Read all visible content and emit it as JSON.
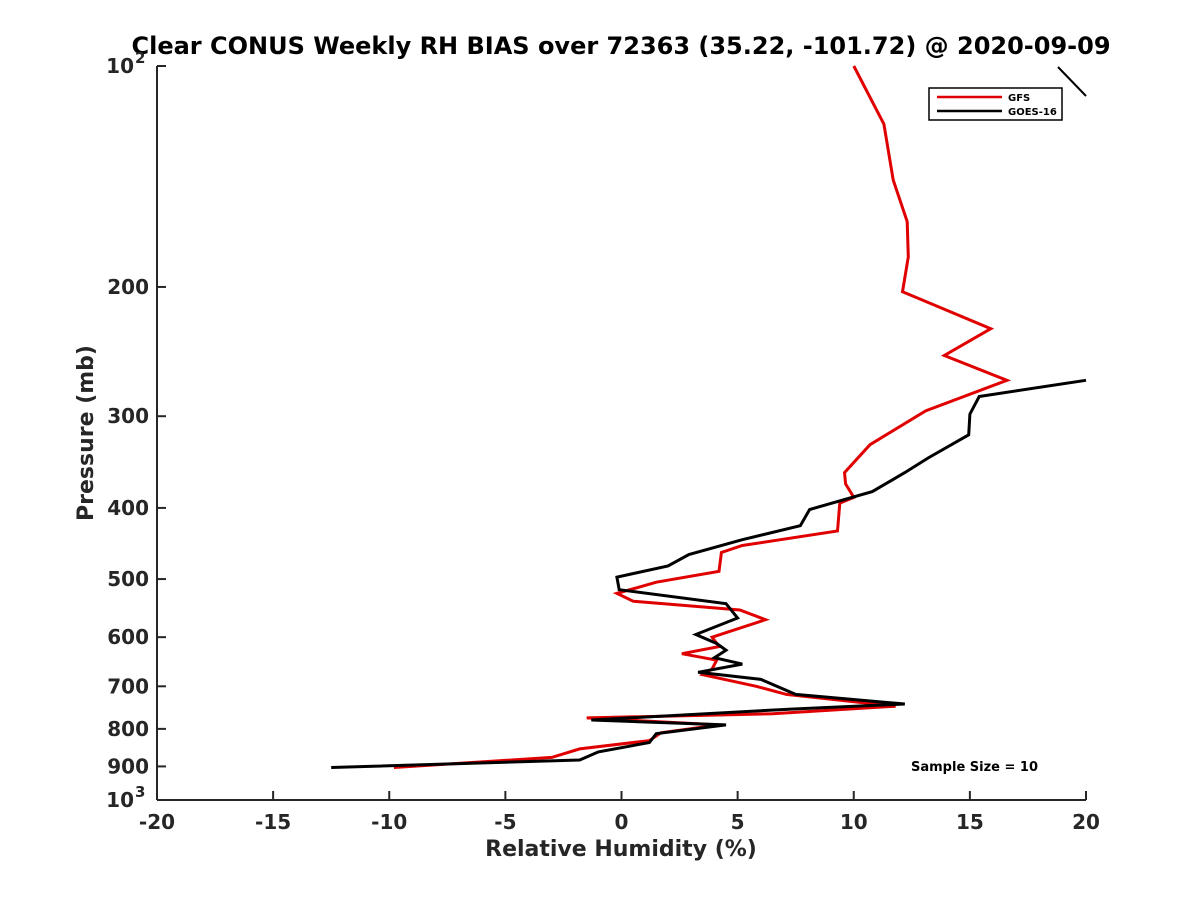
{
  "chart_data": {
    "type": "line",
    "title": "Clear CONUS Weekly RH BIAS over 72363 (35.22, -101.72) @ 2020-09-09",
    "xlabel": "Relative Humidity (%)",
    "ylabel": "Pressure (mb)",
    "xlim": [
      -20,
      20
    ],
    "ylim": [
      100,
      1000
    ],
    "y_scale": "log",
    "y_reversed": true,
    "grid": false,
    "legend_position": "top-right",
    "x_ticks": [
      "-20",
      "-15",
      "-10",
      "-5",
      "0",
      "5",
      "10",
      "15",
      "20"
    ],
    "y_ticks": [
      {
        "value": 100,
        "base": "10",
        "exp": "2"
      },
      {
        "value": 200,
        "label": "200"
      },
      {
        "value": 300,
        "label": "300"
      },
      {
        "value": 400,
        "label": "400"
      },
      {
        "value": 500,
        "label": "500"
      },
      {
        "value": 600,
        "label": "600"
      },
      {
        "value": 700,
        "label": "700"
      },
      {
        "value": 800,
        "label": "800"
      },
      {
        "value": 900,
        "label": "900"
      },
      {
        "value": 1000,
        "base": "10",
        "exp": "3"
      }
    ],
    "series": [
      {
        "name": "GFS",
        "color": "#e00000",
        "points": [
          {
            "x": 10.0,
            "y": 100
          },
          {
            "x": 11.3,
            "y": 120
          },
          {
            "x": 11.7,
            "y": 143
          },
          {
            "x": 12.3,
            "y": 163
          },
          {
            "x": 12.35,
            "y": 182
          },
          {
            "x": 12.1,
            "y": 203
          },
          {
            "x": 15.9,
            "y": 228
          },
          {
            "x": 13.9,
            "y": 248
          },
          {
            "x": 16.6,
            "y": 268
          },
          {
            "x": 13.1,
            "y": 295
          },
          {
            "x": 10.7,
            "y": 328
          },
          {
            "x": 9.6,
            "y": 358
          },
          {
            "x": 9.65,
            "y": 371
          },
          {
            "x": 10.0,
            "y": 387
          },
          {
            "x": 9.4,
            "y": 394
          },
          {
            "x": 9.3,
            "y": 430
          },
          {
            "x": 5.2,
            "y": 450
          },
          {
            "x": 4.3,
            "y": 460
          },
          {
            "x": 4.2,
            "y": 488
          },
          {
            "x": 1.5,
            "y": 505
          },
          {
            "x": -0.2,
            "y": 523
          },
          {
            "x": 0.5,
            "y": 536
          },
          {
            "x": 5.1,
            "y": 551
          },
          {
            "x": 6.2,
            "y": 568
          },
          {
            "x": 3.9,
            "y": 600
          },
          {
            "x": 4.2,
            "y": 618
          },
          {
            "x": 2.6,
            "y": 632
          },
          {
            "x": 4.1,
            "y": 645
          },
          {
            "x": 3.9,
            "y": 663
          },
          {
            "x": 3.5,
            "y": 675
          },
          {
            "x": 5.8,
            "y": 700
          },
          {
            "x": 7.1,
            "y": 718
          },
          {
            "x": 11.8,
            "y": 745
          },
          {
            "x": 6.5,
            "y": 763
          },
          {
            "x": -1.5,
            "y": 773
          },
          {
            "x": 4.2,
            "y": 790
          },
          {
            "x": 1.7,
            "y": 810
          },
          {
            "x": 1.2,
            "y": 830
          },
          {
            "x": -1.8,
            "y": 852
          },
          {
            "x": -3.0,
            "y": 875
          },
          {
            "x": -9.8,
            "y": 903
          }
        ]
      },
      {
        "name": "GOES-16",
        "color": "#000000",
        "points": [
          {
            "x": 20.0,
            "y": 268
          },
          {
            "x": 15.4,
            "y": 282
          },
          {
            "x": 15.0,
            "y": 298
          },
          {
            "x": 14.95,
            "y": 318
          },
          {
            "x": 13.2,
            "y": 342
          },
          {
            "x": 12.2,
            "y": 358
          },
          {
            "x": 10.8,
            "y": 380
          },
          {
            "x": 8.1,
            "y": 402
          },
          {
            "x": 7.7,
            "y": 423
          },
          {
            "x": 5.2,
            "y": 442
          },
          {
            "x": 2.9,
            "y": 463
          },
          {
            "x": 2.0,
            "y": 480
          },
          {
            "x": -0.2,
            "y": 497
          },
          {
            "x": -0.1,
            "y": 517
          },
          {
            "x": 4.5,
            "y": 540
          },
          {
            "x": 5.0,
            "y": 565
          },
          {
            "x": 3.2,
            "y": 595
          },
          {
            "x": 4.1,
            "y": 612
          },
          {
            "x": 4.5,
            "y": 625
          },
          {
            "x": 4.0,
            "y": 640
          },
          {
            "x": 5.2,
            "y": 653
          },
          {
            "x": 3.3,
            "y": 670
          },
          {
            "x": 6.0,
            "y": 685
          },
          {
            "x": 7.5,
            "y": 718
          },
          {
            "x": 12.2,
            "y": 740
          },
          {
            "x": 7.3,
            "y": 752
          },
          {
            "x": -1.3,
            "y": 778
          },
          {
            "x": 4.5,
            "y": 790
          },
          {
            "x": 1.5,
            "y": 812
          },
          {
            "x": 1.2,
            "y": 835
          },
          {
            "x": -1.0,
            "y": 860
          },
          {
            "x": -1.8,
            "y": 882
          },
          {
            "x": -12.5,
            "y": 903
          }
        ]
      }
    ],
    "annotation": "Sample Size = 10"
  }
}
